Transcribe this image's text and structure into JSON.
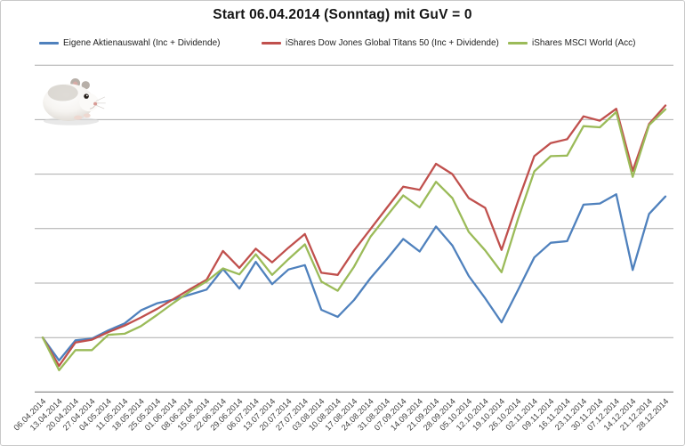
{
  "title": "Start 06.04.2014 (Sonntag) mit GuV = 0",
  "colors": {
    "series_blue": "#4F81BD",
    "series_red": "#C0504D",
    "series_green": "#9BBB59",
    "gridline": "#ACACAC",
    "axis_line": "#8C8C8C",
    "tick_text": "#3F3F3F"
  },
  "chart_data": {
    "type": "line",
    "title": "Start 06.04.2014 (Sonntag) mit GuV = 0",
    "xlabel": "",
    "ylabel": "",
    "y_axis_tick_labels_visible": false,
    "ylim": [
      -1,
      5
    ],
    "gridline_spacing": 1,
    "grid": "horizontal",
    "legend_position": "top",
    "value_note": "No y-axis labels are shown in the chart; values are estimated in gridline units, start value 0 lies on the second gridline from the bottom.",
    "categories": [
      "06.04.2014",
      "13.04.2014",
      "20.04.2014",
      "27.04.2014",
      "04.05.2014",
      "11.05.2014",
      "18.05.2014",
      "25.05.2014",
      "01.06.2014",
      "08.06.2014",
      "15.06.2014",
      "22.06.2014",
      "29.06.2014",
      "06.07.2014",
      "13.07.2014",
      "20.07.2014",
      "27.07.2014",
      "03.08.2014",
      "10.08.2014",
      "17.08.2014",
      "24.08.2014",
      "31.08.2014",
      "07.09.2014",
      "14.09.2014",
      "21.09.2014",
      "28.09.2014",
      "05.10.2014",
      "12.10.2014",
      "19.10.2014",
      "26.10.2014",
      "02.11.2014",
      "09.11.2014",
      "16.11.2014",
      "23.11.2014",
      "30.11.2014",
      "07.12.2014",
      "14.12.2014",
      "21.12.2014",
      "28.12.2014"
    ],
    "series": [
      {
        "name": "Eigene Aktienauswahl (Inc + Dividende)",
        "color": "#4F81BD",
        "values": [
          0,
          -0.42,
          -0.05,
          -0.02,
          0.13,
          0.26,
          0.5,
          0.63,
          0.7,
          0.79,
          0.88,
          1.26,
          0.9,
          1.39,
          0.98,
          1.25,
          1.33,
          0.51,
          0.38,
          0.69,
          1.09,
          1.44,
          1.81,
          1.58,
          2.04,
          1.69,
          1.13,
          0.72,
          0.28,
          0.87,
          1.47,
          1.74,
          1.77,
          2.44,
          2.46,
          2.63,
          1.24,
          2.27,
          2.59
        ]
      },
      {
        "name": "iShares Dow Jones Global Titans 50 (Inc + Dividende)",
        "color": "#C0504D",
        "values": [
          0,
          -0.52,
          -0.09,
          -0.04,
          0.1,
          0.22,
          0.37,
          0.53,
          0.71,
          0.89,
          1.06,
          1.59,
          1.28,
          1.63,
          1.38,
          1.65,
          1.9,
          1.19,
          1.15,
          1.6,
          1.99,
          2.38,
          2.77,
          2.71,
          3.19,
          3.0,
          2.56,
          2.38,
          1.61,
          2.5,
          3.33,
          3.57,
          3.64,
          4.06,
          3.98,
          4.2,
          3.06,
          3.92,
          4.26
        ]
      },
      {
        "name": "iShares MSCI World (Acc)",
        "color": "#9BBB59",
        "values": [
          0,
          -0.6,
          -0.23,
          -0.23,
          0.05,
          0.07,
          0.21,
          0.42,
          0.64,
          0.85,
          1.03,
          1.27,
          1.16,
          1.53,
          1.15,
          1.44,
          1.71,
          1.03,
          0.86,
          1.3,
          1.85,
          2.23,
          2.61,
          2.39,
          2.86,
          2.56,
          1.94,
          1.6,
          1.2,
          2.17,
          3.05,
          3.33,
          3.34,
          3.88,
          3.86,
          4.14,
          2.95,
          3.9,
          4.19
        ]
      }
    ]
  },
  "decor": {
    "hamster_image": "white-grey dwarf hamster photo at top-left of plot area"
  }
}
